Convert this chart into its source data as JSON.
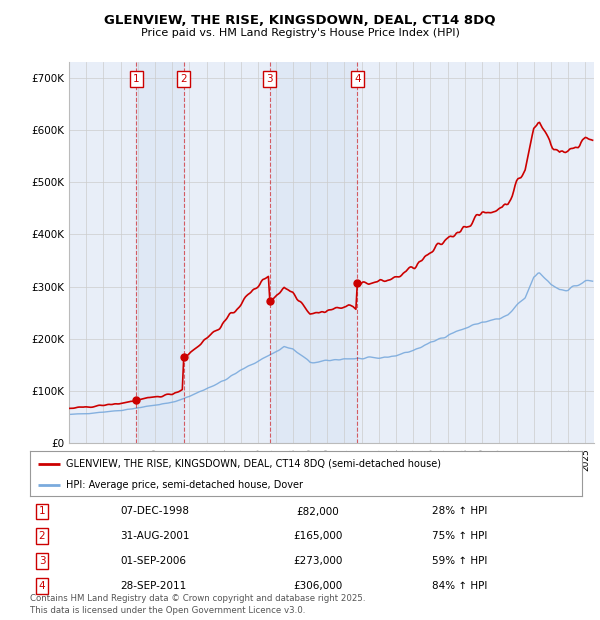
{
  "title": "GLENVIEW, THE RISE, KINGSDOWN, DEAL, CT14 8DQ",
  "subtitle": "Price paid vs. HM Land Registry's House Price Index (HPI)",
  "ylim": [
    0,
    730000
  ],
  "yticks": [
    0,
    100000,
    200000,
    300000,
    400000,
    500000,
    600000,
    700000
  ],
  "ytick_labels": [
    "£0",
    "£100K",
    "£200K",
    "£300K",
    "£400K",
    "£500K",
    "£600K",
    "£700K"
  ],
  "background_color": "#ffffff",
  "plot_bg_color": "#e8eef8",
  "grid_color": "#cccccc",
  "hpi_line_color": "#7aaadd",
  "price_line_color": "#cc0000",
  "sale_marker_color": "#cc0000",
  "sale_vline_color": "#cc0000",
  "sale_box_color": "#cc0000",
  "shade_color": "#dce6f5",
  "sales": [
    {
      "label": "1",
      "year": 1998.92,
      "price": 82000,
      "date": "07-DEC-1998",
      "pct": "28% ↑ HPI"
    },
    {
      "label": "2",
      "year": 2001.67,
      "price": 165000,
      "date": "31-AUG-2001",
      "pct": "75% ↑ HPI"
    },
    {
      "label": "3",
      "year": 2006.67,
      "price": 273000,
      "date": "01-SEP-2006",
      "pct": "59% ↑ HPI"
    },
    {
      "label": "4",
      "year": 2011.75,
      "price": 306000,
      "date": "28-SEP-2011",
      "pct": "84% ↑ HPI"
    }
  ],
  "legend_line1": "GLENVIEW, THE RISE, KINGSDOWN, DEAL, CT14 8DQ (semi-detached house)",
  "legend_line2": "HPI: Average price, semi-detached house, Dover",
  "footer1": "Contains HM Land Registry data © Crown copyright and database right 2025.",
  "footer2": "This data is licensed under the Open Government Licence v3.0.",
  "xmin": 1995,
  "xmax": 2025.5
}
